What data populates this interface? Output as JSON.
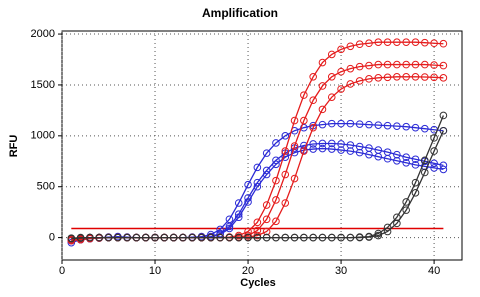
{
  "chart_data": {
    "type": "line",
    "title": "Amplification",
    "x_label": "Cycles",
    "y_label": "RFU",
    "x": [
      1,
      2,
      3,
      4,
      5,
      6,
      7,
      8,
      9,
      10,
      11,
      12,
      13,
      14,
      15,
      16,
      17,
      18,
      19,
      20,
      21,
      22,
      23,
      24,
      25,
      26,
      27,
      28,
      29,
      30,
      31,
      32,
      33,
      34,
      35,
      36,
      37,
      38,
      39,
      40,
      41
    ],
    "xlim": [
      0,
      43
    ],
    "xticks": [
      0,
      10,
      20,
      30,
      40
    ],
    "ylim": [
      -220,
      2030
    ],
    "yticks": [
      0,
      500,
      1000,
      1500,
      2000
    ],
    "grid": true,
    "markers": true,
    "threshold": {
      "value": 90,
      "color": "#e00000"
    },
    "series": [
      {
        "color": "#2b2bd6",
        "values": [
          -50,
          -20,
          -10,
          0,
          5,
          10,
          5,
          0,
          0,
          0,
          0,
          0,
          0,
          5,
          10,
          30,
          80,
          180,
          340,
          520,
          690,
          830,
          930,
          1000,
          1050,
          1080,
          1100,
          1110,
          1120,
          1120,
          1120,
          1115,
          1110,
          1105,
          1100,
          1095,
          1090,
          1080,
          1070,
          1060,
          1050
        ]
      },
      {
        "color": "#2b2bd6",
        "values": [
          -30,
          -20,
          -10,
          -5,
          0,
          0,
          0,
          0,
          0,
          0,
          0,
          0,
          0,
          0,
          5,
          10,
          40,
          110,
          230,
          390,
          540,
          660,
          760,
          830,
          880,
          905,
          920,
          925,
          925,
          920,
          910,
          895,
          880,
          860,
          840,
          815,
          790,
          770,
          750,
          730,
          710
        ]
      },
      {
        "color": "#2b2bd6",
        "values": [
          -20,
          -10,
          0,
          0,
          0,
          0,
          0,
          0,
          0,
          0,
          0,
          0,
          0,
          0,
          0,
          5,
          30,
          90,
          200,
          350,
          500,
          620,
          720,
          790,
          835,
          860,
          870,
          875,
          870,
          860,
          850,
          835,
          815,
          795,
          775,
          755,
          735,
          715,
          700,
          685,
          670
        ]
      },
      {
        "color": "#e51c1c",
        "values": [
          -30,
          -20,
          -10,
          -5,
          0,
          0,
          0,
          0,
          0,
          0,
          0,
          0,
          0,
          0,
          0,
          0,
          0,
          5,
          20,
          60,
          150,
          320,
          560,
          850,
          1150,
          1400,
          1580,
          1720,
          1800,
          1850,
          1880,
          1900,
          1910,
          1920,
          1920,
          1920,
          1920,
          1920,
          1915,
          1910,
          1905
        ]
      },
      {
        "color": "#e51c1c",
        "values": [
          -20,
          -10,
          -5,
          0,
          0,
          0,
          0,
          0,
          0,
          0,
          0,
          0,
          0,
          0,
          0,
          0,
          0,
          0,
          5,
          20,
          70,
          180,
          370,
          620,
          900,
          1150,
          1350,
          1490,
          1580,
          1630,
          1660,
          1680,
          1690,
          1700,
          1700,
          1700,
          1700,
          1700,
          1700,
          1695,
          1690
        ]
      },
      {
        "color": "#e51c1c",
        "values": [
          -10,
          -5,
          0,
          0,
          0,
          0,
          0,
          0,
          0,
          0,
          0,
          0,
          0,
          0,
          0,
          0,
          0,
          0,
          0,
          5,
          20,
          60,
          160,
          340,
          580,
          850,
          1080,
          1260,
          1380,
          1460,
          1510,
          1540,
          1560,
          1570,
          1575,
          1580,
          1580,
          1580,
          1578,
          1575,
          1570
        ]
      },
      {
        "color": "#333333",
        "values": [
          -10,
          -5,
          0,
          0,
          0,
          0,
          0,
          0,
          0,
          0,
          0,
          0,
          0,
          0,
          0,
          0,
          0,
          0,
          0,
          0,
          0,
          0,
          0,
          0,
          0,
          0,
          0,
          0,
          0,
          0,
          0,
          5,
          10,
          40,
          100,
          200,
          350,
          540,
          760,
          980,
          1200
        ]
      },
      {
        "color": "#333333",
        "values": [
          -5,
          0,
          0,
          0,
          0,
          0,
          0,
          0,
          0,
          0,
          0,
          0,
          0,
          0,
          0,
          0,
          0,
          0,
          0,
          0,
          0,
          0,
          0,
          0,
          0,
          0,
          0,
          0,
          0,
          0,
          0,
          0,
          5,
          20,
          60,
          140,
          270,
          440,
          640,
          850,
          1050
        ]
      }
    ]
  }
}
